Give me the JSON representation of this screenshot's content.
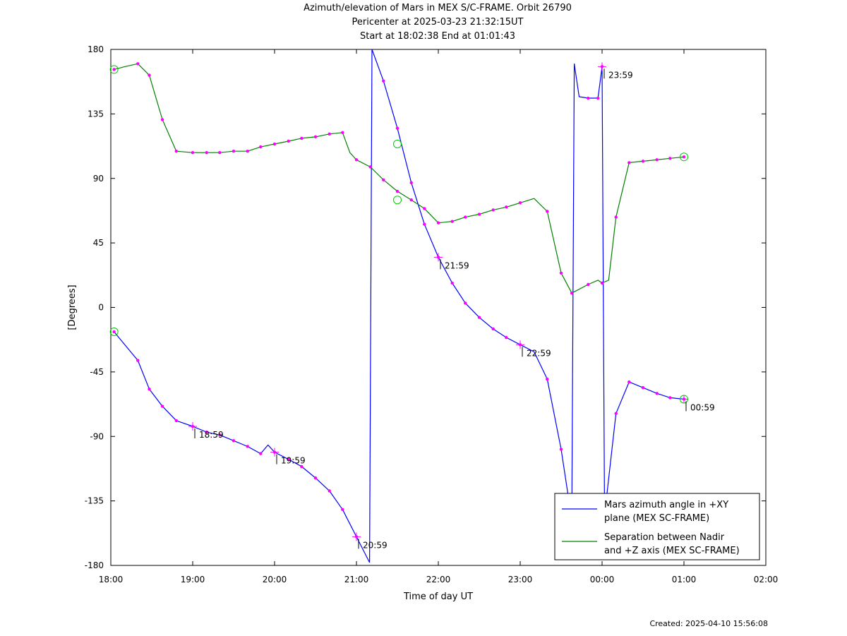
{
  "header": {
    "title": "Azimuth/elevation of Mars in MEX S/C-FRAME.  Orbit 26790",
    "subtitle1": "Pericenter at 2025-03-23 21:32:15UT",
    "subtitle2": "Start at 18:02:38 End at 01:01:43"
  },
  "footer": {
    "created": "Created: 2025-04-10 15:56:08"
  },
  "chart_data": {
    "type": "line",
    "xlabel": "Time of day UT",
    "ylabel": "[Degrees]",
    "xlim": [
      0,
      8
    ],
    "ylim": [
      -180,
      180
    ],
    "x_ticks": [
      {
        "value": 0,
        "label": "18:00"
      },
      {
        "value": 1,
        "label": "19:00"
      },
      {
        "value": 2,
        "label": "20:00"
      },
      {
        "value": 3,
        "label": "21:00"
      },
      {
        "value": 4,
        "label": "22:00"
      },
      {
        "value": 5,
        "label": "23:00"
      },
      {
        "value": 6,
        "label": "00:00"
      },
      {
        "value": 7,
        "label": "01:00"
      },
      {
        "value": 8,
        "label": "02:00"
      }
    ],
    "y_ticks": [
      180,
      135,
      90,
      45,
      0,
      -45,
      -90,
      -135,
      -180
    ],
    "grid": false,
    "legend_position": "bottom-right",
    "series": [
      {
        "name": "Mars azimuth angle in +XY plane (MEX SC-FRAME)",
        "color": "#0000ff",
        "segments": [
          [
            [
              0.04,
              -17
            ],
            [
              0.17,
              -26
            ],
            [
              0.33,
              -37
            ],
            [
              0.47,
              -57
            ],
            [
              0.63,
              -69
            ],
            [
              0.8,
              -79
            ],
            [
              1.0,
              -83
            ],
            [
              1.17,
              -87
            ],
            [
              1.33,
              -89
            ],
            [
              1.5,
              -93
            ],
            [
              1.67,
              -97
            ],
            [
              1.83,
              -102
            ],
            [
              1.92,
              -96
            ],
            [
              2.0,
              -101
            ],
            [
              2.17,
              -106
            ],
            [
              2.33,
              -111
            ],
            [
              2.5,
              -119
            ],
            [
              2.67,
              -128
            ],
            [
              2.83,
              -141
            ],
            [
              3.0,
              -160
            ],
            [
              3.16,
              -178
            ]
          ],
          [
            [
              3.16,
              -178
            ],
            [
              3.19,
              180
            ]
          ],
          [
            [
              3.19,
              180
            ],
            [
              3.33,
              158
            ],
            [
              3.5,
              125
            ],
            [
              3.67,
              87
            ],
            [
              3.83,
              58
            ],
            [
              4.0,
              35
            ],
            [
              4.17,
              17
            ],
            [
              4.33,
              3
            ],
            [
              4.5,
              -7
            ],
            [
              4.67,
              -15
            ],
            [
              4.83,
              -21
            ],
            [
              5.0,
              -26
            ],
            [
              5.17,
              -31
            ],
            [
              5.33,
              -50
            ],
            [
              5.5,
              -99
            ],
            [
              5.63,
              -148
            ]
          ],
          [
            [
              5.63,
              -148
            ],
            [
              5.66,
              170
            ]
          ],
          [
            [
              5.66,
              170
            ],
            [
              5.72,
              147
            ],
            [
              5.83,
              146
            ],
            [
              5.95,
              146
            ],
            [
              6.0,
              168
            ]
          ],
          [
            [
              6.0,
              168
            ],
            [
              6.03,
              -145
            ]
          ],
          [
            [
              6.03,
              -145
            ],
            [
              6.17,
              -74
            ],
            [
              6.33,
              -52
            ],
            [
              6.5,
              -56
            ],
            [
              6.67,
              -60
            ],
            [
              6.83,
              -63
            ],
            [
              7.0,
              -64
            ]
          ]
        ],
        "markers": [
          [
            0.04,
            -17
          ],
          [
            0.33,
            -37
          ],
          [
            0.47,
            -57
          ],
          [
            0.63,
            -69
          ],
          [
            0.8,
            -79
          ],
          [
            1.0,
            -83
          ],
          [
            1.17,
            -87
          ],
          [
            1.33,
            -89
          ],
          [
            1.5,
            -93
          ],
          [
            1.67,
            -97
          ],
          [
            1.83,
            -102
          ],
          [
            2.0,
            -101
          ],
          [
            2.17,
            -106
          ],
          [
            2.33,
            -111
          ],
          [
            2.5,
            -119
          ],
          [
            2.67,
            -128
          ],
          [
            2.83,
            -141
          ],
          [
            3.0,
            -160
          ],
          [
            3.33,
            158
          ],
          [
            3.5,
            125
          ],
          [
            3.67,
            87
          ],
          [
            3.83,
            58
          ],
          [
            4.0,
            35
          ],
          [
            4.17,
            17
          ],
          [
            4.33,
            3
          ],
          [
            4.5,
            -7
          ],
          [
            4.67,
            -15
          ],
          [
            4.83,
            -21
          ],
          [
            5.0,
            -26
          ],
          [
            5.33,
            -50
          ],
          [
            5.5,
            -99
          ],
          [
            5.83,
            146
          ],
          [
            5.95,
            146
          ],
          [
            6.0,
            168
          ],
          [
            6.17,
            -74
          ],
          [
            6.33,
            -52
          ],
          [
            6.5,
            -56
          ],
          [
            6.67,
            -60
          ],
          [
            6.83,
            -63
          ],
          [
            7.0,
            -64
          ]
        ],
        "circles": [
          [
            0.04,
            -17
          ],
          [
            3.5,
            114
          ],
          [
            7.0,
            -64
          ]
        ]
      },
      {
        "name": "Separation between Nadir and +Z axis (MEX SC-FRAME)",
        "color": "#008000",
        "segments": [
          [
            [
              0.04,
              166
            ],
            [
              0.17,
              168
            ],
            [
              0.33,
              170
            ],
            [
              0.47,
              162
            ],
            [
              0.63,
              131
            ],
            [
              0.8,
              109
            ],
            [
              1.0,
              108
            ],
            [
              1.17,
              108
            ],
            [
              1.33,
              108
            ],
            [
              1.5,
              109
            ],
            [
              1.67,
              109
            ],
            [
              1.83,
              112
            ],
            [
              2.0,
              114
            ],
            [
              2.17,
              116
            ],
            [
              2.33,
              118
            ],
            [
              2.5,
              119
            ],
            [
              2.67,
              121
            ],
            [
              2.83,
              122
            ],
            [
              2.92,
              108
            ],
            [
              3.0,
              103
            ],
            [
              3.17,
              98
            ],
            [
              3.33,
              89
            ],
            [
              3.5,
              81
            ],
            [
              3.67,
              75
            ],
            [
              3.83,
              69
            ],
            [
              4.0,
              59
            ],
            [
              4.17,
              60
            ],
            [
              4.33,
              63
            ],
            [
              4.5,
              65
            ],
            [
              4.67,
              68
            ],
            [
              4.83,
              70
            ],
            [
              5.0,
              73
            ],
            [
              5.17,
              76
            ],
            [
              5.33,
              67
            ],
            [
              5.5,
              24
            ],
            [
              5.63,
              10
            ],
            [
              5.83,
              16
            ],
            [
              5.95,
              19
            ],
            [
              6.0,
              17
            ],
            [
              6.08,
              19
            ],
            [
              6.17,
              63
            ],
            [
              6.33,
              101
            ],
            [
              6.5,
              102
            ],
            [
              6.67,
              103
            ],
            [
              6.83,
              104
            ],
            [
              7.0,
              105
            ]
          ]
        ],
        "markers": [
          [
            0.04,
            166
          ],
          [
            0.33,
            170
          ],
          [
            0.47,
            162
          ],
          [
            0.63,
            131
          ],
          [
            0.8,
            109
          ],
          [
            1.0,
            108
          ],
          [
            1.17,
            108
          ],
          [
            1.33,
            108
          ],
          [
            1.5,
            109
          ],
          [
            1.67,
            109
          ],
          [
            1.83,
            112
          ],
          [
            2.0,
            114
          ],
          [
            2.17,
            116
          ],
          [
            2.33,
            118
          ],
          [
            2.5,
            119
          ],
          [
            2.67,
            121
          ],
          [
            2.83,
            122
          ],
          [
            3.0,
            103
          ],
          [
            3.17,
            98
          ],
          [
            3.33,
            89
          ],
          [
            3.5,
            81
          ],
          [
            3.67,
            75
          ],
          [
            3.83,
            69
          ],
          [
            4.0,
            59
          ],
          [
            4.17,
            60
          ],
          [
            4.33,
            63
          ],
          [
            4.5,
            65
          ],
          [
            4.67,
            68
          ],
          [
            4.83,
            70
          ],
          [
            5.0,
            73
          ],
          [
            5.33,
            67
          ],
          [
            5.5,
            24
          ],
          [
            5.63,
            10
          ],
          [
            5.83,
            16
          ],
          [
            6.0,
            17
          ],
          [
            6.17,
            63
          ],
          [
            6.33,
            101
          ],
          [
            6.5,
            102
          ],
          [
            6.67,
            103
          ],
          [
            6.83,
            104
          ],
          [
            7.0,
            105
          ]
        ],
        "circles": [
          [
            0.04,
            166
          ],
          [
            3.5,
            75
          ],
          [
            7.0,
            105
          ]
        ]
      }
    ],
    "hour_marks": [
      {
        "x": 1.0,
        "y": -83,
        "label": "18:59"
      },
      {
        "x": 2.0,
        "y": -101,
        "label": "19:59"
      },
      {
        "x": 3.0,
        "y": -160,
        "label": "20:59"
      },
      {
        "x": 4.0,
        "y": 35,
        "label": "21:59"
      },
      {
        "x": 5.0,
        "y": -26,
        "label": "22:59"
      },
      {
        "x": 6.0,
        "y": 168,
        "label": "23:59"
      },
      {
        "x": 7.0,
        "y": -64,
        "label": "00:59"
      }
    ],
    "legend": [
      {
        "line1": "Mars azimuth angle in +XY",
        "line2": "plane (MEX SC-FRAME)",
        "color": "#0000ff"
      },
      {
        "line1": "Separation between Nadir",
        "line2": "and +Z axis (MEX SC-FRAME)",
        "color": "#008000"
      }
    ],
    "marker_color": "#ff00ff",
    "circle_color": "#00cc00"
  }
}
